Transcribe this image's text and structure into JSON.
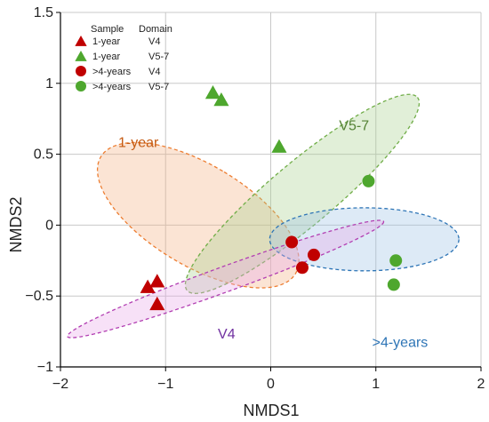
{
  "chart_data": {
    "type": "scatter",
    "xlabel": "NMDS1",
    "ylabel": "NMDS2",
    "xlim": [
      -2,
      2
    ],
    "ylim": [
      -1,
      1.5
    ],
    "x_ticks": [
      -2,
      -1,
      0,
      1,
      2
    ],
    "y_ticks": [
      -1,
      -0.5,
      0,
      0.5,
      1,
      1.5
    ],
    "grid": true,
    "legend": {
      "position": "top-left",
      "header_sample": "Sample",
      "header_domain": "Domain"
    },
    "series": [
      {
        "sample": "1-year",
        "domain": "V4",
        "marker": "triangle",
        "color": "#C00000",
        "points": [
          [
            -1.17,
            -0.44
          ],
          [
            -1.08,
            -0.4
          ],
          [
            -1.08,
            -0.56
          ]
        ]
      },
      {
        "sample": "1-year",
        "domain": "V5-7",
        "marker": "triangle",
        "color": "#4EA72E",
        "points": [
          [
            -0.55,
            0.93
          ],
          [
            -0.47,
            0.88
          ],
          [
            0.08,
            0.55
          ]
        ]
      },
      {
        "sample": ">4-years",
        "domain": "V4",
        "marker": "circle",
        "color": "#C00000",
        "points": [
          [
            0.2,
            -0.12
          ],
          [
            0.41,
            -0.21
          ],
          [
            0.3,
            -0.3
          ]
        ]
      },
      {
        "sample": ">4-years",
        "domain": "V5-7",
        "marker": "circle",
        "color": "#4EA72E",
        "points": [
          [
            0.93,
            0.31
          ],
          [
            1.19,
            -0.25
          ],
          [
            1.17,
            -0.42
          ]
        ]
      }
    ],
    "ellipses": [
      {
        "label": "1-year",
        "fill": "#F4B183",
        "stroke": "#ED7D31",
        "text_color": "#C55A11",
        "center": [
          -0.69,
          0.07
        ],
        "rx": 0.48,
        "ry": 1.08,
        "angle_deg": 59
      },
      {
        "label": "V5-7",
        "fill": "#A9D18E",
        "stroke": "#70AD47",
        "text_color": "#548235",
        "center": [
          0.3,
          0.22
        ],
        "rx": 1.43,
        "ry": 0.3,
        "angle_deg": 40
      },
      {
        "label": ">4-years",
        "fill": "#9DC3E6",
        "stroke": "#2E75B6",
        "text_color": "#2E75B6",
        "center": [
          0.89,
          -0.1
        ],
        "rx": 0.9,
        "ry": 0.3,
        "angle_deg": 0
      },
      {
        "label": "V4",
        "fill": "#E8A8E8",
        "stroke": "#B23FB2",
        "text_color": "#7030A0",
        "center": [
          -0.43,
          -0.38
        ],
        "rx": 1.6,
        "ry": 0.12,
        "angle_deg": 20
      }
    ]
  }
}
